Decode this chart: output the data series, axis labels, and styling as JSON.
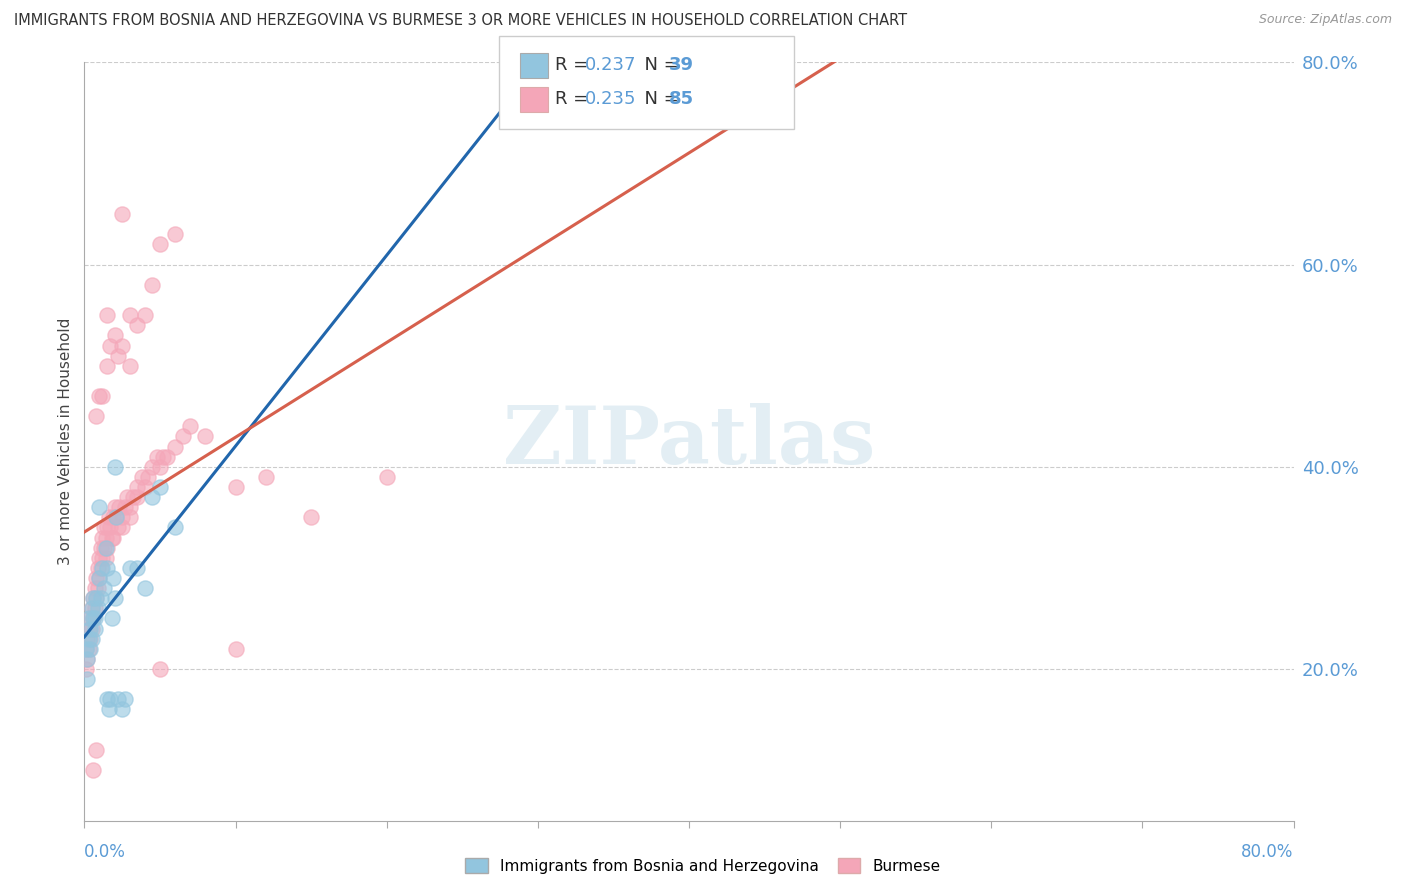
{
  "title": "IMMIGRANTS FROM BOSNIA AND HERZEGOVINA VS BURMESE 3 OR MORE VEHICLES IN HOUSEHOLD CORRELATION CHART",
  "source": "Source: ZipAtlas.com",
  "ylabel": "3 or more Vehicles in Household",
  "bosnia_color": "#92c5de",
  "burmese_color": "#f4a6b8",
  "bosnia_R": 0.237,
  "bosnia_N": 39,
  "burmese_R": 0.235,
  "burmese_N": 85,
  "bosnia_line_color": "#2166ac",
  "burmese_line_color": "#d6604d",
  "background_color": "#ffffff",
  "grid_color": "#cccccc",
  "tick_color": "#5b9bd5",
  "bosnia_scatter": [
    [
      0.001,
      0.22
    ],
    [
      0.002,
      0.21
    ],
    [
      0.002,
      0.19
    ],
    [
      0.003,
      0.25
    ],
    [
      0.003,
      0.23
    ],
    [
      0.004,
      0.24
    ],
    [
      0.004,
      0.22
    ],
    [
      0.005,
      0.26
    ],
    [
      0.005,
      0.23
    ],
    [
      0.006,
      0.27
    ],
    [
      0.006,
      0.25
    ],
    [
      0.007,
      0.25
    ],
    [
      0.007,
      0.24
    ],
    [
      0.008,
      0.27
    ],
    [
      0.009,
      0.26
    ],
    [
      0.01,
      0.29
    ],
    [
      0.011,
      0.27
    ],
    [
      0.012,
      0.3
    ],
    [
      0.013,
      0.28
    ],
    [
      0.014,
      0.32
    ],
    [
      0.015,
      0.3
    ],
    [
      0.015,
      0.17
    ],
    [
      0.016,
      0.16
    ],
    [
      0.017,
      0.17
    ],
    [
      0.018,
      0.25
    ],
    [
      0.019,
      0.29
    ],
    [
      0.02,
      0.27
    ],
    [
      0.021,
      0.35
    ],
    [
      0.022,
      0.17
    ],
    [
      0.025,
      0.16
    ],
    [
      0.027,
      0.17
    ],
    [
      0.03,
      0.3
    ],
    [
      0.035,
      0.3
    ],
    [
      0.04,
      0.28
    ],
    [
      0.045,
      0.37
    ],
    [
      0.05,
      0.38
    ],
    [
      0.06,
      0.34
    ],
    [
      0.02,
      0.4
    ],
    [
      0.01,
      0.36
    ]
  ],
  "burmese_scatter": [
    [
      0.001,
      0.22
    ],
    [
      0.001,
      0.2
    ],
    [
      0.002,
      0.23
    ],
    [
      0.002,
      0.21
    ],
    [
      0.003,
      0.24
    ],
    [
      0.003,
      0.22
    ],
    [
      0.004,
      0.25
    ],
    [
      0.004,
      0.23
    ],
    [
      0.005,
      0.26
    ],
    [
      0.005,
      0.24
    ],
    [
      0.006,
      0.27
    ],
    [
      0.006,
      0.25
    ],
    [
      0.007,
      0.28
    ],
    [
      0.007,
      0.26
    ],
    [
      0.008,
      0.29
    ],
    [
      0.008,
      0.27
    ],
    [
      0.009,
      0.3
    ],
    [
      0.009,
      0.28
    ],
    [
      0.01,
      0.31
    ],
    [
      0.01,
      0.29
    ],
    [
      0.011,
      0.32
    ],
    [
      0.011,
      0.3
    ],
    [
      0.012,
      0.33
    ],
    [
      0.012,
      0.31
    ],
    [
      0.013,
      0.34
    ],
    [
      0.013,
      0.32
    ],
    [
      0.014,
      0.33
    ],
    [
      0.014,
      0.31
    ],
    [
      0.015,
      0.34
    ],
    [
      0.015,
      0.32
    ],
    [
      0.016,
      0.35
    ],
    [
      0.017,
      0.34
    ],
    [
      0.018,
      0.33
    ],
    [
      0.019,
      0.35
    ],
    [
      0.019,
      0.33
    ],
    [
      0.02,
      0.36
    ],
    [
      0.021,
      0.35
    ],
    [
      0.022,
      0.34
    ],
    [
      0.023,
      0.36
    ],
    [
      0.025,
      0.35
    ],
    [
      0.025,
      0.34
    ],
    [
      0.027,
      0.36
    ],
    [
      0.028,
      0.37
    ],
    [
      0.03,
      0.36
    ],
    [
      0.03,
      0.35
    ],
    [
      0.032,
      0.37
    ],
    [
      0.035,
      0.38
    ],
    [
      0.035,
      0.37
    ],
    [
      0.038,
      0.39
    ],
    [
      0.04,
      0.38
    ],
    [
      0.042,
      0.39
    ],
    [
      0.045,
      0.4
    ],
    [
      0.048,
      0.41
    ],
    [
      0.05,
      0.4
    ],
    [
      0.052,
      0.41
    ],
    [
      0.055,
      0.41
    ],
    [
      0.06,
      0.42
    ],
    [
      0.065,
      0.43
    ],
    [
      0.07,
      0.44
    ],
    [
      0.08,
      0.43
    ],
    [
      0.008,
      0.45
    ],
    [
      0.01,
      0.47
    ],
    [
      0.012,
      0.47
    ],
    [
      0.015,
      0.5
    ],
    [
      0.017,
      0.52
    ],
    [
      0.02,
      0.53
    ],
    [
      0.022,
      0.51
    ],
    [
      0.025,
      0.52
    ],
    [
      0.03,
      0.5
    ],
    [
      0.035,
      0.54
    ],
    [
      0.04,
      0.55
    ],
    [
      0.03,
      0.55
    ],
    [
      0.015,
      0.55
    ],
    [
      0.045,
      0.58
    ],
    [
      0.05,
      0.62
    ],
    [
      0.06,
      0.63
    ],
    [
      0.025,
      0.65
    ],
    [
      0.1,
      0.38
    ],
    [
      0.12,
      0.39
    ],
    [
      0.2,
      0.39
    ],
    [
      0.006,
      0.1
    ],
    [
      0.008,
      0.12
    ],
    [
      0.05,
      0.2
    ],
    [
      0.1,
      0.22
    ],
    [
      0.15,
      0.35
    ]
  ],
  "xlim": [
    0.0,
    0.8
  ],
  "ylim": [
    0.05,
    0.8
  ],
  "yticks": [
    0.2,
    0.4,
    0.6,
    0.8
  ],
  "ytick_labels": [
    "20.0%",
    "40.0%",
    "60.0%",
    "80.0%"
  ],
  "watermark_text": "ZIPatlas",
  "legend_label1": "Immigrants from Bosnia and Herzegovina",
  "legend_label2": "Burmese"
}
